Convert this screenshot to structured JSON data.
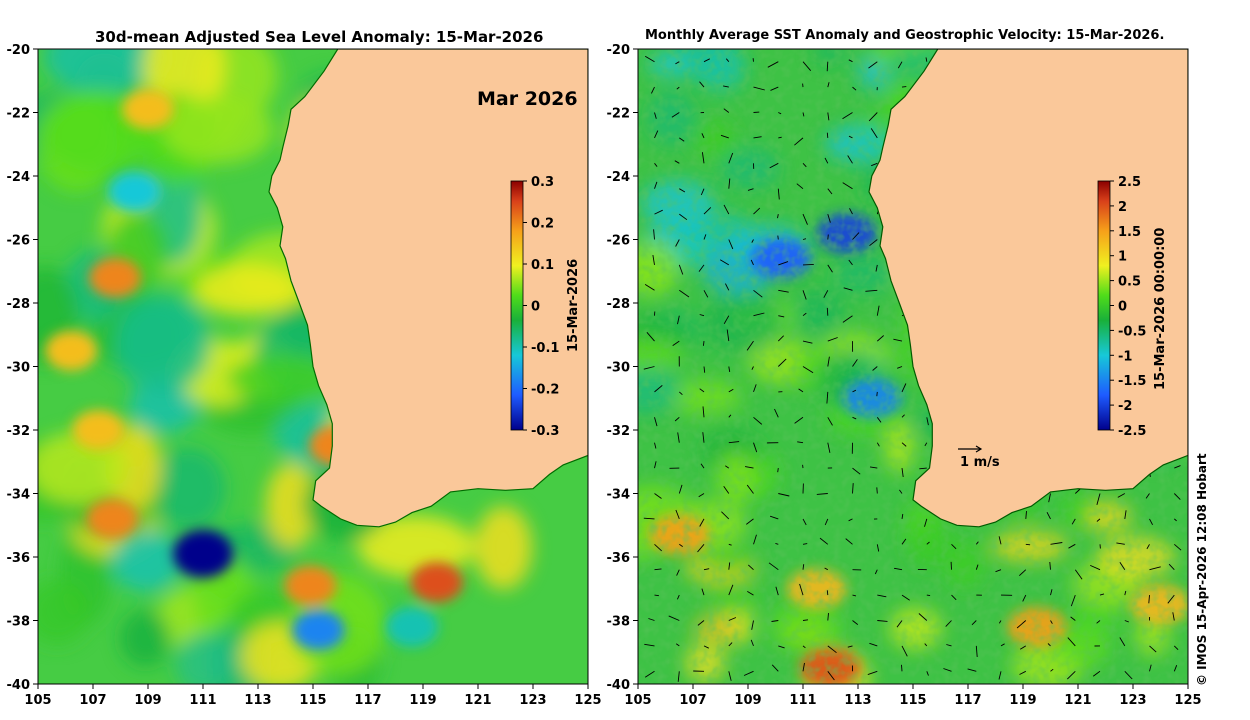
{
  "chart_data": [
    {
      "type": "heatmap",
      "title": "30d-mean Adjusted Sea Level Anomaly: 15-Mar-2026",
      "panel_label": "Mar 2026",
      "xlim": [
        105,
        125
      ],
      "ylim": [
        -40,
        -20
      ],
      "x_ticks": [
        "105",
        "107",
        "109",
        "111",
        "113",
        "115",
        "117",
        "119",
        "121",
        "123",
        "125"
      ],
      "y_ticks": [
        "-20",
        "-22",
        "-24",
        "-26",
        "-28",
        "-30",
        "-32",
        "-34",
        "-36",
        "-38",
        "-40"
      ],
      "colorbar": {
        "label": "15-Mar-2026",
        "range": [
          -0.3,
          0.3
        ],
        "ticks": [
          "0.3",
          "0.2",
          "0.1",
          "0",
          "-0.1",
          "-0.2",
          "-0.3"
        ]
      },
      "features": [
        {
          "name": "low",
          "lon": 111,
          "lat": -35.9,
          "value": -0.3
        },
        {
          "name": "low",
          "lon": 115.2,
          "lat": -38.3,
          "value": -0.18
        },
        {
          "name": "low",
          "lon": 108.5,
          "lat": -24.5,
          "value": -0.12
        },
        {
          "name": "low",
          "lon": 118.6,
          "lat": -38.2,
          "value": -0.1
        },
        {
          "name": "high",
          "lon": 107.8,
          "lat": -27.2,
          "value": 0.2
        },
        {
          "name": "high",
          "lon": 107.7,
          "lat": -34.8,
          "value": 0.2
        },
        {
          "name": "high",
          "lon": 119.5,
          "lat": -36.8,
          "value": 0.24
        },
        {
          "name": "high",
          "lon": 114.9,
          "lat": -36.9,
          "value": 0.2
        },
        {
          "name": "high",
          "lon": 109,
          "lat": -21.9,
          "value": 0.15
        },
        {
          "name": "high",
          "lon": 106.2,
          "lat": -29.5,
          "value": 0.15
        },
        {
          "name": "high",
          "lon": 107.2,
          "lat": -32,
          "value": 0.15
        },
        {
          "name": "high",
          "lon": 115.8,
          "lat": -32.5,
          "value": 0.2
        }
      ]
    },
    {
      "type": "heatmap",
      "title": "Monthly Average SST Anomaly  and Geostrophic Velocity: 15-Mar-2026.",
      "xlim": [
        105,
        125
      ],
      "ylim": [
        -40,
        -20
      ],
      "x_ticks": [
        "105",
        "107",
        "109",
        "111",
        "113",
        "115",
        "117",
        "119",
        "121",
        "123",
        "125"
      ],
      "y_ticks": [
        "-20",
        "-22",
        "-24",
        "-26",
        "-28",
        "-30",
        "-32",
        "-34",
        "-36",
        "-38",
        "-40"
      ],
      "colorbar": {
        "label": "15-Mar-2026 00:00:00",
        "range": [
          -2.5,
          2.5
        ],
        "ticks": [
          "2.5",
          "2",
          "1.5",
          "1",
          "0.5",
          "0",
          "-0.5",
          "-1",
          "-1.5",
          "-2",
          "-2.5"
        ]
      },
      "vector_reference": "1 m/s",
      "features": [
        {
          "name": "cold",
          "lon": 110.2,
          "lat": -26.6,
          "value": -1.8
        },
        {
          "name": "cold",
          "lon": 113.5,
          "lat": -31,
          "value": -1.5
        },
        {
          "name": "cold",
          "lon": 112.6,
          "lat": -25.8,
          "value": -2
        },
        {
          "name": "warm",
          "lon": 106.5,
          "lat": -35.3,
          "value": 1.5
        },
        {
          "name": "warm",
          "lon": 112,
          "lat": -39.5,
          "value": 2
        },
        {
          "name": "warm",
          "lon": 119.5,
          "lat": -38.2,
          "value": 1.5
        },
        {
          "name": "warm",
          "lon": 111.5,
          "lat": -37,
          "value": 1.3
        },
        {
          "name": "warm",
          "lon": 124,
          "lat": -37.5,
          "value": 1.3
        }
      ]
    }
  ],
  "credit": "© IMOS 15-Apr-2026 12:08 Hobart"
}
